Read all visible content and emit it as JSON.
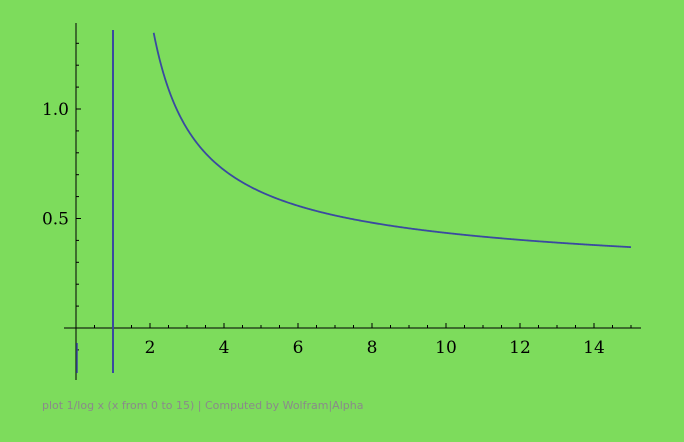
{
  "caption": "plot 1/log x (x from 0 to 15) | Computed by Wolfram|Alpha",
  "colors": {
    "background": "#7ddc5c",
    "curve": "#3a4aa0",
    "axis": "#000000"
  },
  "chart_data": {
    "type": "line",
    "title": "",
    "xlabel": "",
    "ylabel": "",
    "function": "1/log(x)",
    "xlim": [
      0,
      15
    ],
    "ylim": [
      -0.15,
      1.37
    ],
    "x_ticks": [
      2,
      4,
      6,
      8,
      10,
      12,
      14
    ],
    "x_tick_labels": [
      "2",
      "4",
      "6",
      "8",
      "10",
      "12",
      "14"
    ],
    "y_ticks": [
      0.5,
      1.0
    ],
    "y_tick_labels": [
      "0.5",
      "1.0"
    ],
    "asymptote_x": 1,
    "series": [
      {
        "points": [
          [
            2.1,
            1.348
          ],
          [
            2.3,
            1.201
          ],
          [
            2.5,
            1.091
          ],
          [
            3.0,
            0.91
          ],
          [
            3.5,
            0.798
          ],
          [
            4.0,
            0.721
          ],
          [
            4.5,
            0.665
          ],
          [
            5.0,
            0.621
          ],
          [
            6.0,
            0.558
          ],
          [
            7.0,
            0.514
          ],
          [
            8.0,
            0.481
          ],
          [
            9.0,
            0.455
          ],
          [
            10.0,
            0.434
          ],
          [
            11.0,
            0.417
          ],
          [
            12.0,
            0.402
          ],
          [
            13.0,
            0.39
          ],
          [
            14.0,
            0.379
          ],
          [
            15.0,
            0.369
          ]
        ]
      }
    ],
    "grid": false
  }
}
